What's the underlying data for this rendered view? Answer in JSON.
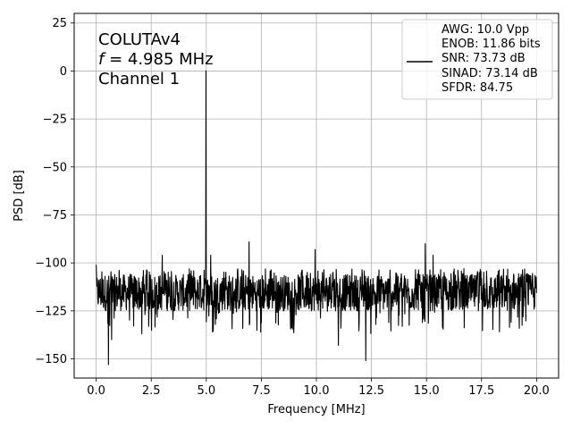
{
  "chart_data": {
    "type": "line",
    "xlabel": "Frequency [MHz]",
    "ylabel": "PSD [dB]",
    "xlim": [
      -1.0,
      21.0
    ],
    "ylim": [
      -160,
      30
    ],
    "x_ticks": [
      0.0,
      2.5,
      5.0,
      7.5,
      10.0,
      12.5,
      15.0,
      17.5,
      20.0
    ],
    "x_tick_labels": [
      "0.0",
      "2.5",
      "5.0",
      "7.5",
      "10.0",
      "12.5",
      "15.0",
      "17.5",
      "20.0"
    ],
    "y_ticks": [
      25,
      0,
      -25,
      -50,
      -75,
      -100,
      -125,
      -150
    ],
    "y_tick_labels": [
      "25",
      "0",
      "−25",
      "−50",
      "−75",
      "−100",
      "−125",
      "−150"
    ],
    "grid": true,
    "annotation": {
      "line1": "COLUTAv4",
      "line2_italic": "f",
      "line2_rest": " = 4.985 MHz",
      "line3": "Channel 1"
    },
    "legend_position": "top-right",
    "legend_lines": [
      "AWG: 10.0 Vpp",
      "ENOB: 11.86 bits",
      "SNR: 73.73 dB",
      "SINAD: 73.14 dB",
      "SFDR: 84.75"
    ],
    "series": [
      {
        "color": "#000000",
        "noise_floor_band": [
          -125,
          -106
        ],
        "spikes": [
          {
            "x": 0.0,
            "y": -101
          },
          {
            "x": 0.55,
            "y": -153
          },
          {
            "x": 0.7,
            "y": -140
          },
          {
            "x": 3.0,
            "y": -96
          },
          {
            "x": 4.985,
            "y": 0
          },
          {
            "x": 4.7,
            "y": -107
          },
          {
            "x": 5.2,
            "y": -96
          },
          {
            "x": 6.95,
            "y": -89
          },
          {
            "x": 9.95,
            "y": -93
          },
          {
            "x": 12.25,
            "y": -151
          },
          {
            "x": 14.95,
            "y": -90
          },
          {
            "x": 15.3,
            "y": -96
          },
          {
            "x": 11.0,
            "y": -143
          }
        ]
      }
    ]
  },
  "colors": {
    "line": "#000000",
    "grid": "#b0b0b0",
    "axes": "#000000"
  }
}
